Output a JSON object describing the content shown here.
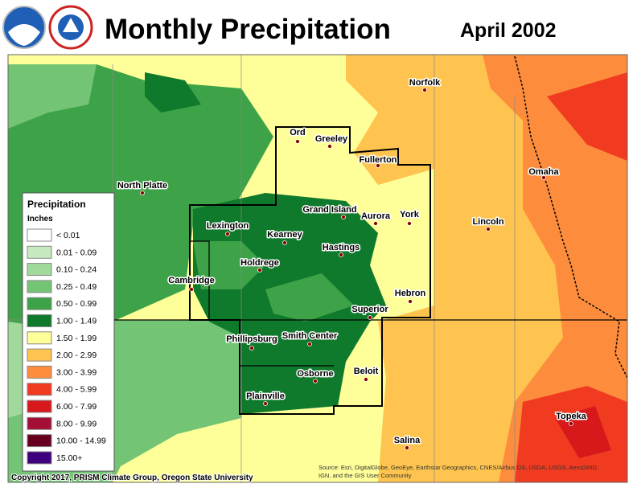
{
  "header": {
    "title": "Monthly Precipitation",
    "date": "April 2002"
  },
  "legend": {
    "title": "Precipitation",
    "units": "Inches",
    "items": [
      {
        "label": "< 0.01",
        "color": "#ffffff"
      },
      {
        "label": "0.01 - 0.09",
        "color": "#c7e9c0"
      },
      {
        "label": "0.10 - 0.24",
        "color": "#a1d99b"
      },
      {
        "label": "0.25 - 0.49",
        "color": "#74c476"
      },
      {
        "label": "0.50 - 0.99",
        "color": "#3ea348"
      },
      {
        "label": "1.00 - 1.49",
        "color": "#0f7a2c"
      },
      {
        "label": "1.50 - 1.99",
        "color": "#ffff99"
      },
      {
        "label": "2.00 - 2.99",
        "color": "#fec44f"
      },
      {
        "label": "3.00 - 3.99",
        "color": "#fd8d3c"
      },
      {
        "label": "4.00 - 5.99",
        "color": "#f03b20"
      },
      {
        "label": "6.00 - 7.99",
        "color": "#d7191c"
      },
      {
        "label": "8.00 - 9.99",
        "color": "#a50f35"
      },
      {
        "label": "10.00 - 14.99",
        "color": "#67001f"
      },
      {
        "label": "15.00+",
        "color": "#3f007d"
      }
    ]
  },
  "cities": [
    "Norfolk",
    "Ord",
    "Greeley",
    "Fullerton",
    "North Platte",
    "Omaha",
    "Lexington",
    "Grand Island",
    "Aurora",
    "York",
    "Lincoln",
    "Kearney",
    "Hastings",
    "Holdrege",
    "Cambridge",
    "Hebron",
    "Superior",
    "Phillipsburg",
    "Smith Center",
    "Beloit",
    "Osborne",
    "Plainville",
    "Salina",
    "Topeka"
  ],
  "footer": {
    "copyright": "Copyright 2017, PRISM Climate Group, Oregon State University",
    "source": [
      "Source: Esri, DigitalGlobe, GeoEye, Earthstar Geographics, CNES/Airbus DS, USDA, USGS, AeroGRID,",
      "IGN, and the GIS User Community"
    ]
  }
}
